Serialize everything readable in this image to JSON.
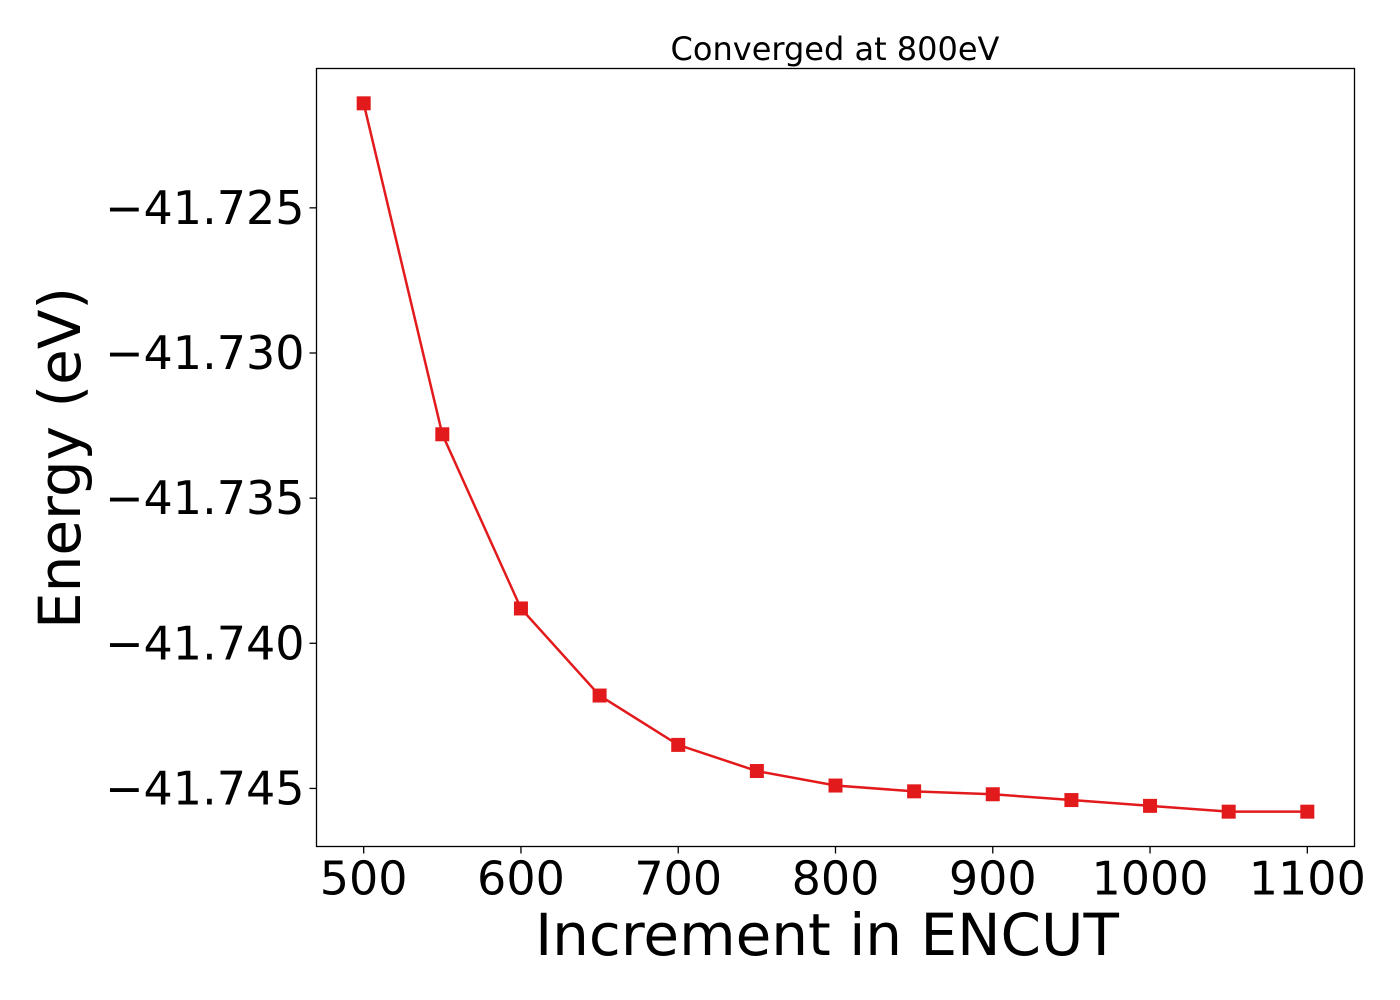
{
  "chart_data": {
    "type": "line",
    "title": "Converged at 800eV",
    "xlabel": "Increment in ENCUT",
    "ylabel": "Energy (eV)",
    "x": [
      500,
      550,
      600,
      650,
      700,
      750,
      800,
      850,
      900,
      950,
      1000,
      1050,
      1100
    ],
    "series": [
      {
        "values": [
          -41.7214,
          -41.7328,
          -41.7388,
          -41.7418,
          -41.7435,
          -41.7444,
          -41.7449,
          -41.7451,
          -41.7452,
          -41.7454,
          -41.7456,
          -41.7458,
          -41.7458
        ],
        "color": "#e31a1c",
        "marker": "square"
      }
    ],
    "xlim": [
      470,
      1130
    ],
    "ylim": [
      -41.747,
      -41.7202
    ],
    "xticks": [
      500,
      600,
      700,
      800,
      900,
      1000,
      1100
    ],
    "xtick_labels": [
      "500",
      "600",
      "700",
      "800",
      "900",
      "1000",
      "1100"
    ],
    "yticks": [
      -41.725,
      -41.73,
      -41.735,
      -41.74,
      -41.745
    ],
    "ytick_labels": [
      "−41.725",
      "−41.730",
      "−41.735",
      "−41.740",
      "−41.745"
    ],
    "grid": false
  }
}
